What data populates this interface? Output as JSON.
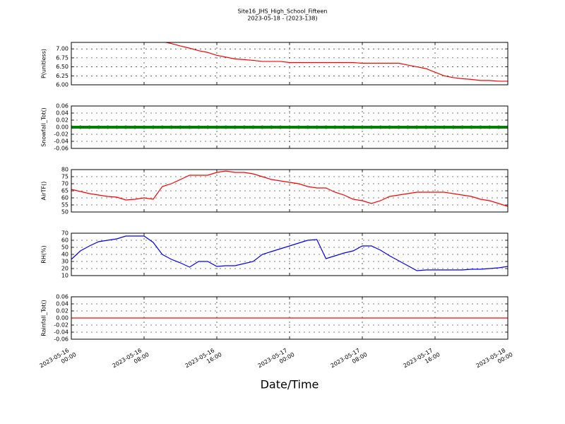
{
  "figure": {
    "title": "Site16_JHS_High_School_Fifteen",
    "subtitle": "2023-05-18 - (2023-138)",
    "xlabel": "Date/Time",
    "x": [
      "2023-05-16 00:00",
      "2023-05-16 01:00",
      "2023-05-16 02:00",
      "2023-05-16 03:00",
      "2023-05-16 04:00",
      "2023-05-16 05:00",
      "2023-05-16 06:00",
      "2023-05-16 07:00",
      "2023-05-16 08:00",
      "2023-05-16 09:00",
      "2023-05-16 10:00",
      "2023-05-16 11:00",
      "2023-05-16 12:00",
      "2023-05-16 13:00",
      "2023-05-16 14:00",
      "2023-05-16 15:00",
      "2023-05-16 16:00",
      "2023-05-16 17:00",
      "2023-05-16 18:00",
      "2023-05-16 19:00",
      "2023-05-16 20:00",
      "2023-05-16 21:00",
      "2023-05-16 22:00",
      "2023-05-16 23:00",
      "2023-05-17 00:00",
      "2023-05-17 01:00",
      "2023-05-17 02:00",
      "2023-05-17 03:00",
      "2023-05-17 04:00",
      "2023-05-17 05:00",
      "2023-05-17 06:00",
      "2023-05-17 07:00",
      "2023-05-17 08:00",
      "2023-05-17 09:00",
      "2023-05-17 10:00",
      "2023-05-17 11:00",
      "2023-05-17 12:00",
      "2023-05-17 13:00",
      "2023-05-17 14:00",
      "2023-05-17 15:00",
      "2023-05-17 16:00",
      "2023-05-17 17:00",
      "2023-05-17 18:00",
      "2023-05-17 19:00",
      "2023-05-17 20:00",
      "2023-05-17 21:00",
      "2023-05-17 22:00",
      "2023-05-17 23:00",
      "2023-05-18 00:00"
    ],
    "xlim": [
      "2023-05-16 00:00",
      "2023-05-18 00:00"
    ],
    "xticks": [
      {
        "value": "2023-05-16 00:00",
        "label": [
          "2023-05-16",
          "00:00"
        ]
      },
      {
        "value": "2023-05-16 08:00",
        "label": [
          "2023-05-16",
          "08:00"
        ]
      },
      {
        "value": "2023-05-16 16:00",
        "label": [
          "2023-05-16",
          "16:00"
        ]
      },
      {
        "value": "2023-05-17 00:00",
        "label": [
          "2023-05-17",
          "00:00"
        ]
      },
      {
        "value": "2023-05-17 08:00",
        "label": [
          "2023-05-17",
          "08:00"
        ]
      },
      {
        "value": "2023-05-17 16:00",
        "label": [
          "2023-05-17",
          "16:00"
        ]
      },
      {
        "value": "2023-05-18 00:00",
        "label": [
          "2023-05-18",
          "00:00"
        ]
      }
    ]
  },
  "chart_data": [
    {
      "type": "line",
      "ylabel": "P(unitless)",
      "ylim": [
        6.0,
        7.18
      ],
      "grid": true,
      "yticks": [
        {
          "value": 6,
          "label": "6.00"
        },
        {
          "value": 6.25,
          "label": "6.25"
        },
        {
          "value": 6.5,
          "label": "6.50"
        },
        {
          "value": 6.75,
          "label": "6.75"
        },
        {
          "value": 7,
          "label": "7.00"
        }
      ],
      "series": [
        {
          "color": "#ff0000",
          "values": [
            null,
            null,
            null,
            null,
            null,
            null,
            null,
            null,
            null,
            null,
            7.2,
            7.15,
            7.08,
            7.02,
            6.95,
            6.9,
            6.82,
            6.77,
            6.72,
            6.7,
            6.68,
            6.65,
            6.65,
            6.65,
            6.62,
            6.62,
            6.62,
            6.62,
            6.62,
            6.62,
            6.62,
            6.62,
            6.6,
            6.6,
            6.6,
            6.6,
            6.6,
            6.55,
            6.5,
            6.45,
            6.35,
            6.25,
            6.2,
            6.17,
            6.15,
            6.12,
            6.12,
            6.1,
            6.1
          ]
        }
      ]
    },
    {
      "type": "line",
      "ylabel": "Snowfall_Tot()",
      "ylim": [
        -0.06,
        0.06
      ],
      "grid": true,
      "yticks": [
        {
          "value": -0.06,
          "label": "-0.06"
        },
        {
          "value": -0.04,
          "label": "-0.04"
        },
        {
          "value": -0.02,
          "label": "-0.02"
        },
        {
          "value": 0,
          "label": "0.00"
        },
        {
          "value": 0.02,
          "label": "0.02"
        },
        {
          "value": 0.04,
          "label": "0.04"
        },
        {
          "value": 0.06,
          "label": "0.06"
        }
      ],
      "series": [
        {
          "color": "#008000",
          "marker": true,
          "values": [
            0,
            0,
            0,
            0,
            0,
            0,
            0,
            0,
            0,
            0,
            0,
            0,
            0,
            0,
            0,
            0,
            0,
            0,
            0,
            0,
            0,
            0,
            0,
            0,
            0,
            0,
            0,
            0,
            0,
            0,
            0,
            0,
            0,
            0,
            0,
            0,
            0,
            0,
            0,
            0,
            0,
            0,
            0,
            0,
            0,
            0,
            0,
            0,
            0
          ]
        }
      ]
    },
    {
      "type": "line",
      "ylabel": "AirTF()",
      "ylim": [
        50,
        80
      ],
      "grid": true,
      "yticks": [
        50,
        55,
        60,
        65,
        70,
        75,
        80
      ],
      "series": [
        {
          "color": "#ff0000",
          "values": [
            66,
            64.5,
            63,
            62,
            61,
            60.5,
            58.5,
            59,
            60,
            59,
            68,
            70,
            73,
            76,
            76,
            76,
            78,
            79,
            78,
            78,
            77,
            75,
            73,
            72,
            71,
            70,
            68,
            67,
            67,
            64,
            62,
            59,
            58,
            56,
            58,
            61,
            62,
            63,
            64,
            64,
            64,
            64,
            63,
            62,
            61,
            59,
            58,
            56,
            54
          ]
        }
      ]
    },
    {
      "type": "line",
      "ylabel": "RH(%)",
      "ylim": [
        10,
        70
      ],
      "grid": true,
      "yticks": [
        10,
        20,
        30,
        40,
        50,
        60,
        70
      ],
      "series": [
        {
          "color": "#0000ff",
          "values": [
            33,
            45,
            52,
            58,
            60,
            62,
            66,
            66,
            66,
            57,
            40,
            33,
            28,
            22,
            30,
            30,
            23,
            24,
            24,
            27,
            30,
            40,
            44,
            48,
            52,
            56,
            60,
            61,
            34,
            38,
            42,
            45,
            52,
            52,
            46,
            38,
            31,
            24,
            17,
            18,
            18,
            18,
            18,
            18,
            19,
            19,
            20,
            21,
            23
          ]
        }
      ]
    },
    {
      "type": "line",
      "ylabel": "Rainfall_Tot()",
      "ylim": [
        -0.06,
        0.06
      ],
      "grid": true,
      "yticks": [
        {
          "value": -0.06,
          "label": "-0.06"
        },
        {
          "value": -0.04,
          "label": "-0.04"
        },
        {
          "value": -0.02,
          "label": "-0.02"
        },
        {
          "value": 0,
          "label": "0.00"
        },
        {
          "value": 0.02,
          "label": "0.02"
        },
        {
          "value": 0.04,
          "label": "0.04"
        },
        {
          "value": 0.06,
          "label": "0.06"
        }
      ],
      "series": [
        {
          "color": "#ff0000",
          "values": [
            0,
            0,
            0,
            0,
            0,
            0,
            0,
            0,
            0,
            0,
            0,
            0,
            0,
            0,
            0,
            0,
            0,
            0,
            0,
            0,
            0,
            0,
            0,
            0,
            0,
            0,
            0,
            0,
            0,
            0,
            0,
            0,
            0,
            0,
            0,
            0,
            0,
            0,
            0,
            0,
            0,
            0,
            0,
            0,
            0,
            0,
            0,
            0,
            0
          ]
        }
      ]
    }
  ]
}
